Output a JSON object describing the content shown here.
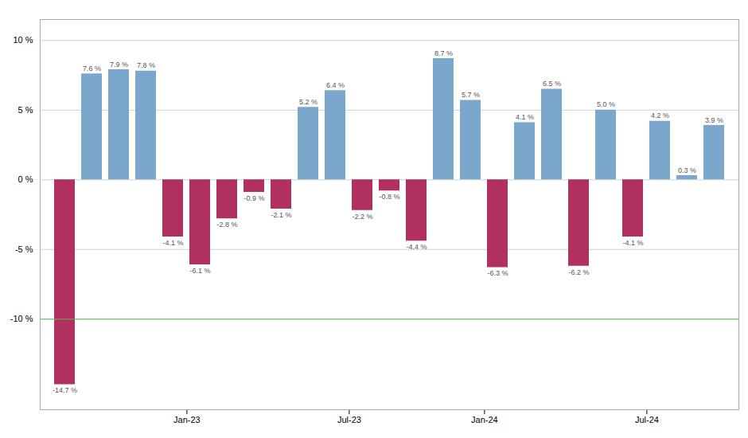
{
  "chart_data": {
    "type": "bar",
    "categories": [
      null,
      null,
      null,
      null,
      "Jan-23",
      null,
      null,
      null,
      null,
      null,
      "Jul-23",
      null,
      null,
      null,
      null,
      "Jan-24",
      null,
      null,
      null,
      null,
      null,
      "Jul-24",
      null,
      null,
      null
    ],
    "values": [
      -14.7,
      7.6,
      7.9,
      7.8,
      -4.1,
      -6.1,
      -2.8,
      -0.9,
      -2.1,
      5.2,
      6.4,
      -2.2,
      -0.8,
      -4.4,
      8.7,
      5.7,
      -6.3,
      4.1,
      6.5,
      -6.2,
      5.0,
      -4.1,
      4.2,
      0.3,
      3.9
    ],
    "value_labels": [
      "-14.7 %",
      "7.6 %",
      "7.9 %",
      "7.8 %",
      "-4.1 %",
      "-6.1 %",
      "-2.8 %",
      "-0.9 %",
      "-2.1 %",
      "5.2 %",
      "6.4 %",
      "-2.2 %",
      "-0.8 %",
      "-4.4 %",
      "8.7 %",
      "5.7 %",
      "-6.3 %",
      "4.1 %",
      "6.5 %",
      "-6.2 %",
      "5.0 %",
      "-4.1 %",
      "4.2 %",
      "0.3 %",
      "3.9 %"
    ],
    "colors": [
      "#b03060",
      "#7ca7cc",
      "#7ca7cc",
      "#7ca7cc",
      "#b03060",
      "#b03060",
      "#b03060",
      "#b03060",
      "#b03060",
      "#7ca7cc",
      "#7ca7cc",
      "#b03060",
      "#b03060",
      "#b03060",
      "#7ca7cc",
      "#7ca7cc",
      "#b03060",
      "#7ca7cc",
      "#7ca7cc",
      "#b03060",
      "#7ca7cc",
      "#b03060",
      "#7ca7cc",
      "#7ca7cc",
      "#7ca7cc"
    ],
    "data_labels": true,
    "ylim": [
      -16.5,
      11.5
    ],
    "yticks": [
      {
        "value": -10,
        "label": "-10 %"
      },
      {
        "value": -5,
        "label": "-5 %"
      },
      {
        "value": 0,
        "label": "0 %"
      },
      {
        "value": 5,
        "label": "5 %"
      },
      {
        "value": 10,
        "label": "10 %"
      }
    ],
    "grid": true,
    "reference_line": {
      "y": -10,
      "color": "#5cb85c"
    }
  }
}
